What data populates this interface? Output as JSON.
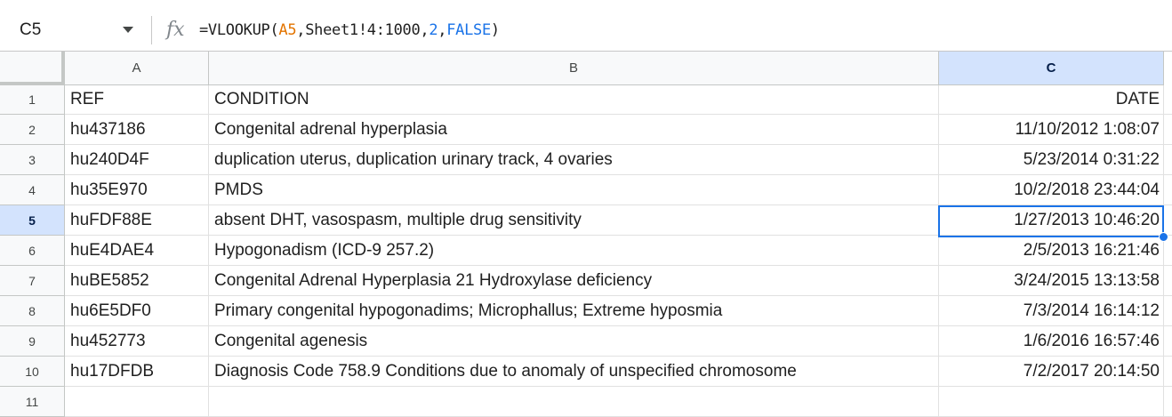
{
  "formula_bar": {
    "name_box": "C5",
    "fx": "fx",
    "formula": {
      "eq": "=VLOOKUP(",
      "ref": "A5",
      "c1": ",",
      "range": "Sheet1!4:1000",
      "c2": ",",
      "index": "2",
      "c3": ",",
      "bool": "FALSE",
      "close": ")"
    }
  },
  "columns": [
    {
      "letter": "A"
    },
    {
      "letter": "B"
    },
    {
      "letter": "C"
    }
  ],
  "active_cell": {
    "row": 5,
    "col": "C"
  },
  "rows": [
    {
      "num": "1",
      "ref": "REF",
      "condition": "CONDITION",
      "date": "DATE"
    },
    {
      "num": "2",
      "ref": "hu437186",
      "condition": "Congenital adrenal hyperplasia",
      "date": "11/10/2012 1:08:07"
    },
    {
      "num": "3",
      "ref": "hu240D4F",
      "condition": "duplication uterus, duplication urinary track, 4 ovaries",
      "date": "5/23/2014 0:31:22"
    },
    {
      "num": "4",
      "ref": "hu35E970",
      "condition": "PMDS",
      "date": "10/2/2018 23:44:04"
    },
    {
      "num": "5",
      "ref": "huFDF88E",
      "condition": "absent DHT, vasospasm, multiple drug sensitivity",
      "date": "1/27/2013 10:46:20"
    },
    {
      "num": "6",
      "ref": "huE4DAE4",
      "condition": "Hypogonadism (ICD-9 257.2)",
      "date": "2/5/2013 16:21:46"
    },
    {
      "num": "7",
      "ref": "huBE5852",
      "condition": "Congenital Adrenal Hyperplasia 21 Hydroxylase deficiency",
      "date": "3/24/2015 13:13:58"
    },
    {
      "num": "8",
      "ref": "hu6E5DF0",
      "condition": "Primary congenital hypogonadims; Microphallus; Extreme hyposmia",
      "date": "7/3/2014 16:14:12"
    },
    {
      "num": "9",
      "ref": "hu452773",
      "condition": "Congenital agenesis",
      "date": "1/6/2016 16:57:46"
    },
    {
      "num": "10",
      "ref": "hu17DFDB",
      "condition": "Diagnosis Code 758.9 Conditions due to anomaly of unspecified chromosome",
      "date": "7/2/2017 20:14:50"
    },
    {
      "num": "11",
      "ref": "",
      "condition": "",
      "date": ""
    }
  ]
}
